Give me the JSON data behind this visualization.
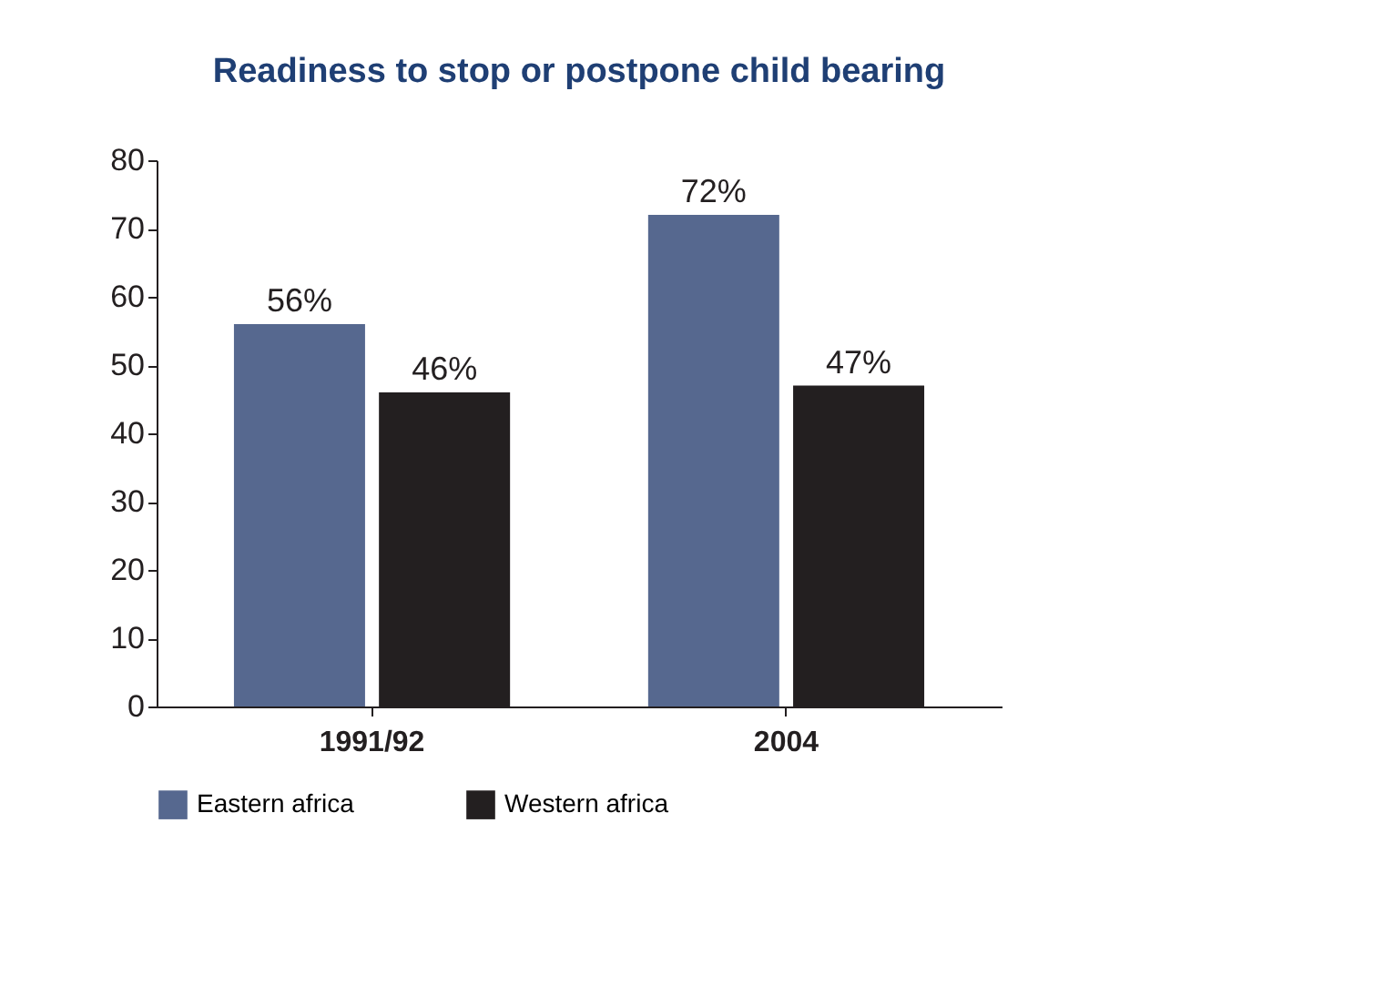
{
  "chart_data": {
    "type": "bar",
    "title": "Readiness to stop or postpone child bearing",
    "categories": [
      "1991/92",
      "2004"
    ],
    "series": [
      {
        "name": "Eastern africa",
        "color": "#56688f",
        "values": [
          56,
          72
        ],
        "value_labels": [
          "56%",
          "72%"
        ]
      },
      {
        "name": "Western africa",
        "color": "#231f20",
        "values": [
          46,
          47
        ],
        "value_labels": [
          "46%",
          "47%"
        ]
      }
    ],
    "ylim": [
      0,
      80
    ],
    "yticks": [
      0,
      10,
      20,
      30,
      40,
      50,
      60,
      70,
      80
    ],
    "grid": false,
    "legend": "bottom"
  }
}
